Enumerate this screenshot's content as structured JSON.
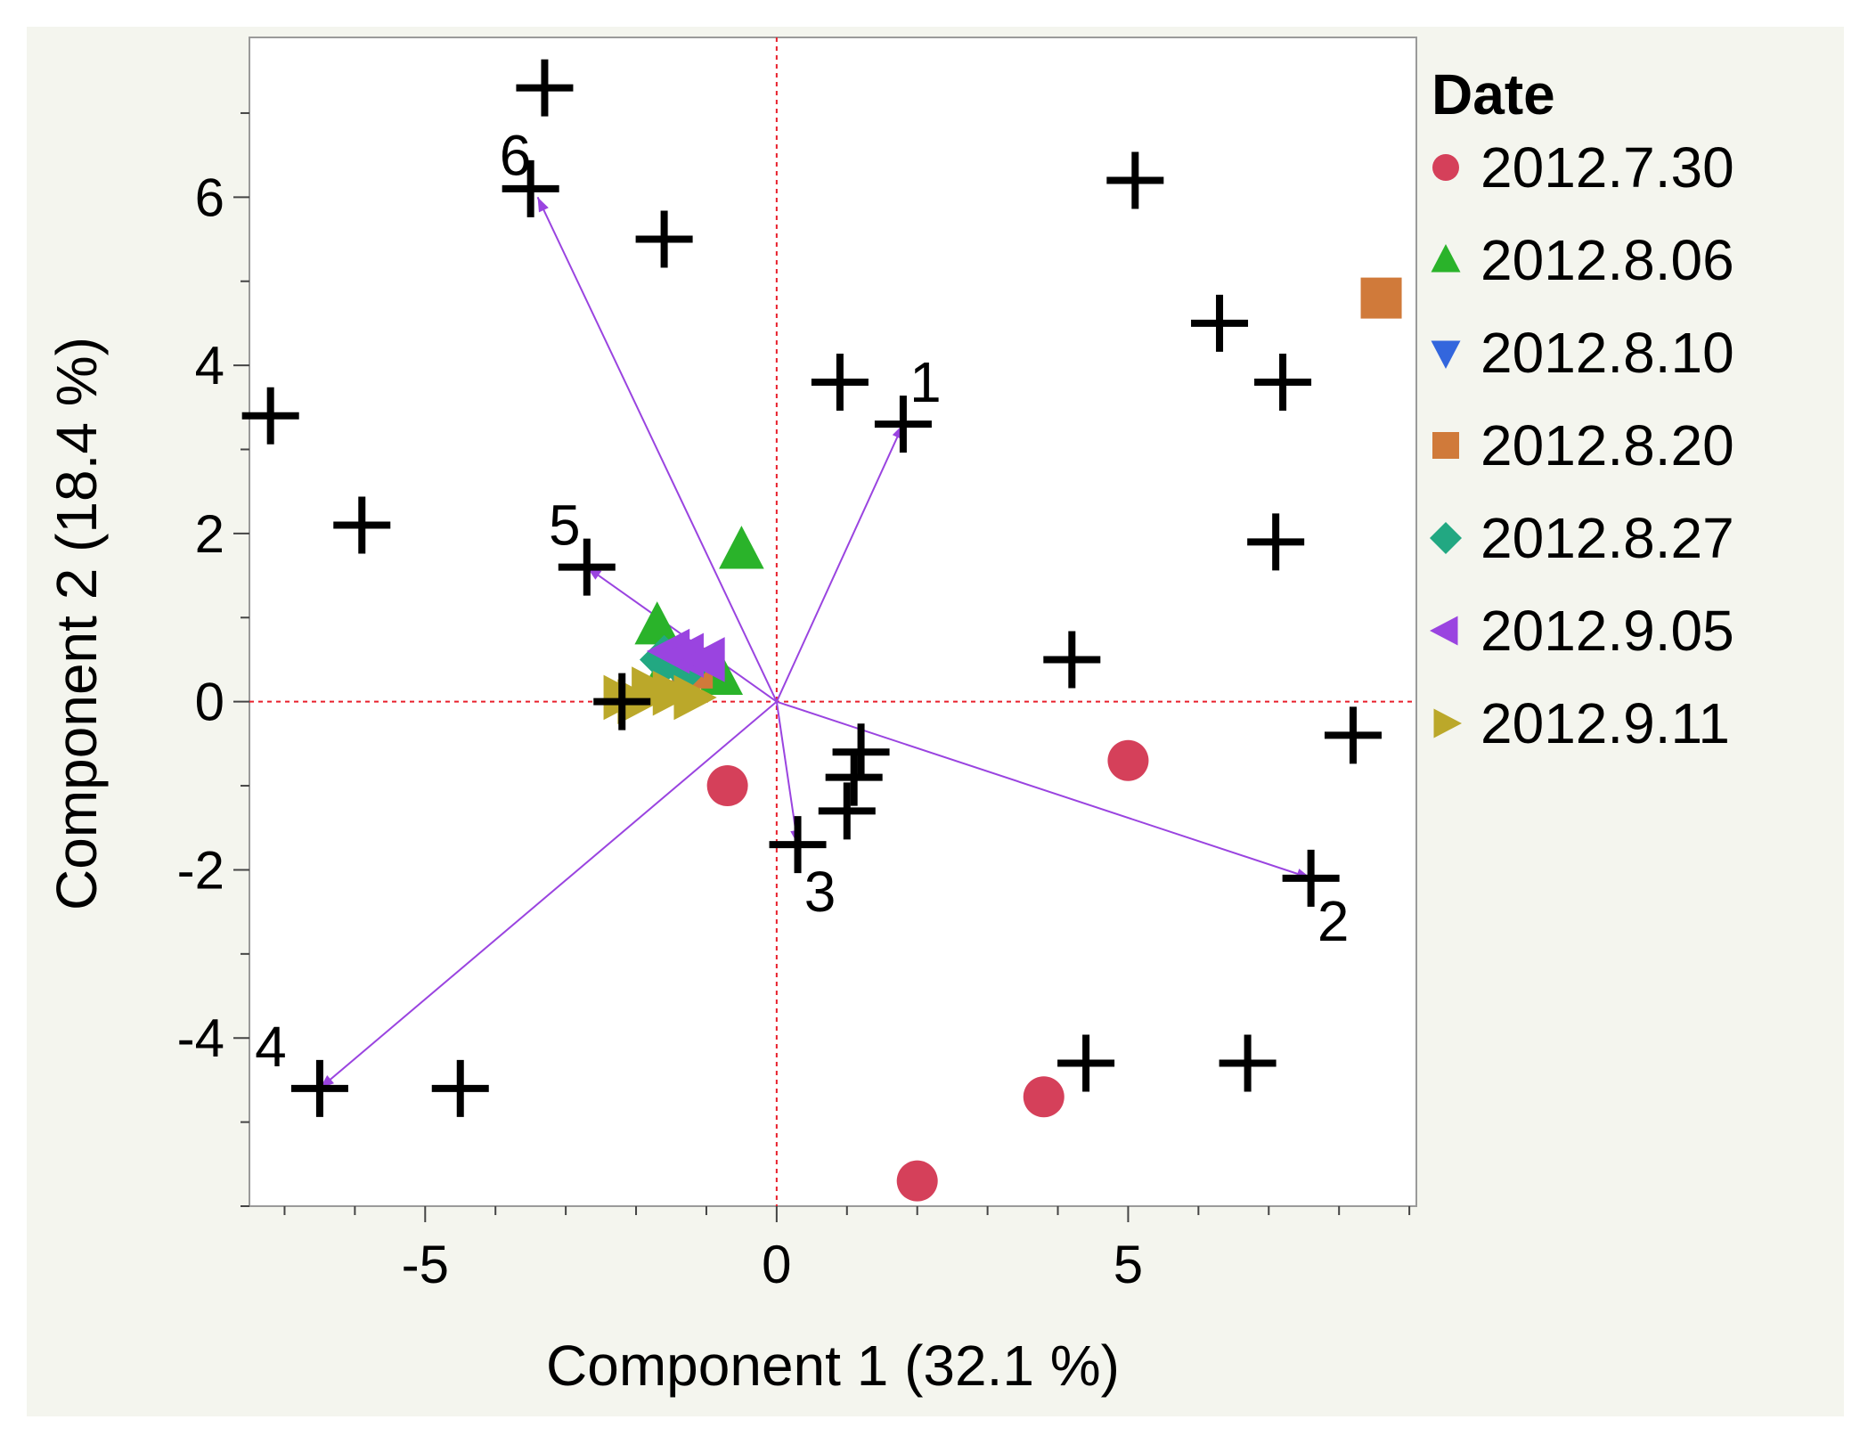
{
  "chart_data": {
    "type": "scatter",
    "title": "",
    "xlabel": "Component 1  (32.1 %)",
    "ylabel": "Component 2  (18.4 %)",
    "xlim": [
      -7.5,
      9.1
    ],
    "ylim": [
      -6.0,
      7.9
    ],
    "x_ticks": [
      -5,
      0,
      5
    ],
    "x_tick_labels": [
      "-5",
      "0",
      "5"
    ],
    "y_ticks": [
      -4,
      -2,
      0,
      2,
      4,
      6
    ],
    "y_tick_labels": [
      "-4",
      "-2",
      "0",
      "2",
      "4",
      "6"
    ],
    "grid": false,
    "reference_lines": {
      "x": 0,
      "y": 0,
      "color": "#e8202c",
      "style": "dotted"
    },
    "legend": {
      "title": "Date",
      "position": "right",
      "entries": [
        {
          "label": "2012.7.30",
          "marker": "circle",
          "color": "#d5405a"
        },
        {
          "label": "2012.8.06",
          "marker": "triangle-up",
          "color": "#2ab32a"
        },
        {
          "label": "2012.8.10",
          "marker": "triangle-down",
          "color": "#3366dd"
        },
        {
          "label": "2012.8.20",
          "marker": "square",
          "color": "#d07a3a"
        },
        {
          "label": "2012.8.27",
          "marker": "diamond",
          "color": "#22a882"
        },
        {
          "label": "2012.9.05",
          "marker": "triangle-left",
          "color": "#9a44e0"
        },
        {
          "label": "2012.9.11",
          "marker": "triangle-right",
          "color": "#bba82a"
        }
      ]
    },
    "loadings_color": "#9a44e0",
    "loadings": [
      {
        "label": "1",
        "x": 1.8,
        "y": 3.3
      },
      {
        "label": "2",
        "x": 7.6,
        "y": -2.1
      },
      {
        "label": "3",
        "x": 0.3,
        "y": -1.7
      },
      {
        "label": "4",
        "x": -6.5,
        "y": -4.6
      },
      {
        "label": "5",
        "x": -2.7,
        "y": 1.6
      },
      {
        "label": "6",
        "x": -3.4,
        "y": 6.0
      }
    ],
    "plus_points": [
      [
        -3.3,
        7.3
      ],
      [
        -3.5,
        6.1
      ],
      [
        -1.6,
        5.5
      ],
      [
        5.1,
        6.2
      ],
      [
        6.3,
        4.5
      ],
      [
        7.2,
        3.8
      ],
      [
        -7.2,
        3.4
      ],
      [
        0.9,
        3.8
      ],
      [
        1.8,
        3.3
      ],
      [
        -5.9,
        2.1
      ],
      [
        -2.7,
        1.6
      ],
      [
        7.1,
        1.9
      ],
      [
        4.2,
        0.5
      ],
      [
        -2.2,
        0.0
      ],
      [
        8.2,
        -0.4
      ],
      [
        1.2,
        -0.6
      ],
      [
        1.1,
        -0.9
      ],
      [
        1.0,
        -1.3
      ],
      [
        0.3,
        -1.7
      ],
      [
        7.6,
        -2.1
      ],
      [
        -6.5,
        -4.6
      ],
      [
        -4.5,
        -4.6
      ],
      [
        4.4,
        -4.3
      ],
      [
        6.7,
        -4.3
      ]
    ],
    "series": [
      {
        "name": "2012.7.30",
        "points": [
          [
            -0.7,
            -1.0
          ],
          [
            5.0,
            -0.7
          ],
          [
            3.8,
            -4.7
          ],
          [
            2.0,
            -5.7
          ]
        ]
      },
      {
        "name": "2012.8.06",
        "points": [
          [
            -0.5,
            1.8
          ],
          [
            -1.7,
            0.9
          ],
          [
            -1.5,
            0.5
          ],
          [
            -0.8,
            0.3
          ]
        ]
      },
      {
        "name": "2012.8.10",
        "points": []
      },
      {
        "name": "2012.8.20",
        "points": [
          [
            8.6,
            4.8
          ],
          [
            -1.2,
            0.4
          ]
        ]
      },
      {
        "name": "2012.8.27",
        "points": [
          [
            -1.6,
            0.5
          ],
          [
            -1.3,
            0.4
          ]
        ]
      },
      {
        "name": "2012.9.05",
        "points": [
          [
            -1.5,
            0.6
          ],
          [
            -1.3,
            0.55
          ],
          [
            -1.0,
            0.5
          ]
        ]
      },
      {
        "name": "2012.9.11",
        "points": [
          [
            -2.2,
            0.05
          ],
          [
            -1.8,
            0.15
          ],
          [
            -1.5,
            0.1
          ],
          [
            -1.2,
            0.05
          ],
          [
            -2.0,
            0.0
          ]
        ]
      }
    ]
  }
}
